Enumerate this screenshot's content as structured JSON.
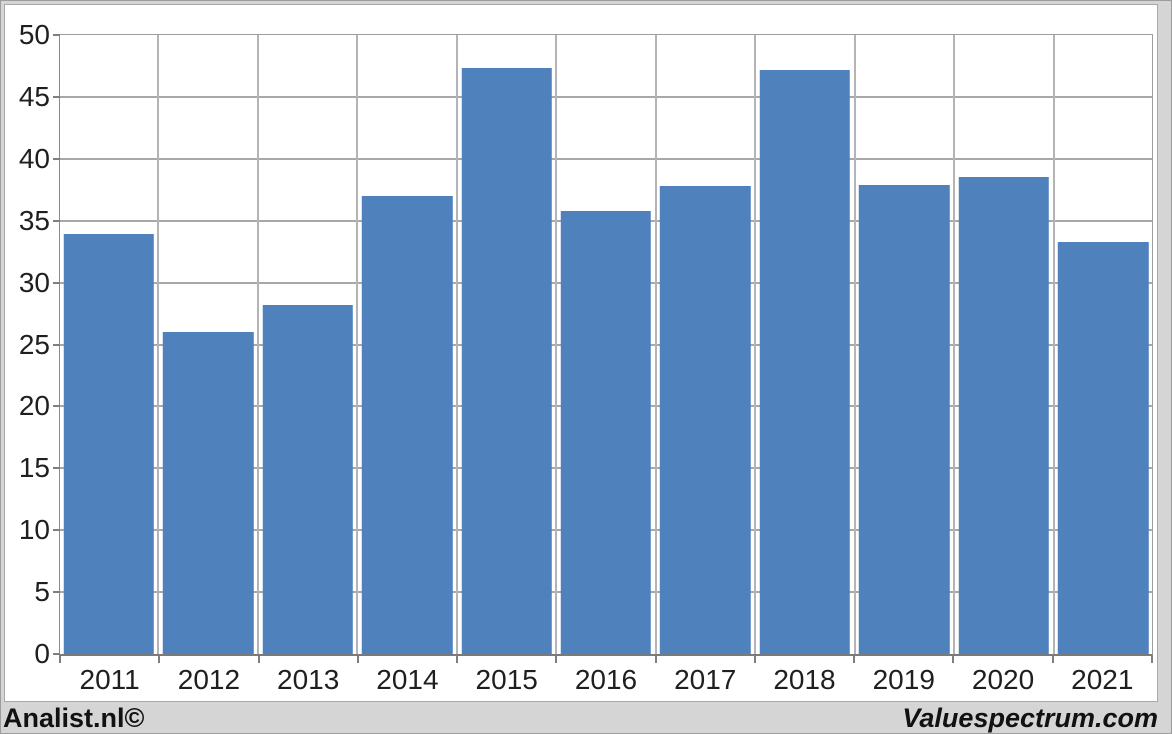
{
  "chart_data": {
    "type": "bar",
    "categories": [
      "2011",
      "2012",
      "2013",
      "2014",
      "2015",
      "2016",
      "2017",
      "2018",
      "2019",
      "2020",
      "2021"
    ],
    "values": [
      33.9,
      26.0,
      28.2,
      37.0,
      47.3,
      35.8,
      37.8,
      47.2,
      37.9,
      38.5,
      33.3
    ],
    "title": "",
    "xlabel": "",
    "ylabel": "",
    "ylim": [
      0,
      50
    ],
    "yticks": [
      0,
      5,
      10,
      15,
      20,
      25,
      30,
      35,
      40,
      45,
      50
    ],
    "grid": true,
    "legend": false
  },
  "colors": {
    "bar": "#4f81bd",
    "gridline_h": "#a8a8a8",
    "gridline_v": "#b4b4b4",
    "axis": "#7a7a7a",
    "tick": "#7f7f7f",
    "label_text": "#1f1f1f",
    "panel_bg": "#ffffff",
    "frame_bg": "#d5d5d5",
    "footer_text": "#111111"
  },
  "footer": {
    "left_text": "Analist.nl©",
    "right_text": "Valuespectrum.com"
  }
}
